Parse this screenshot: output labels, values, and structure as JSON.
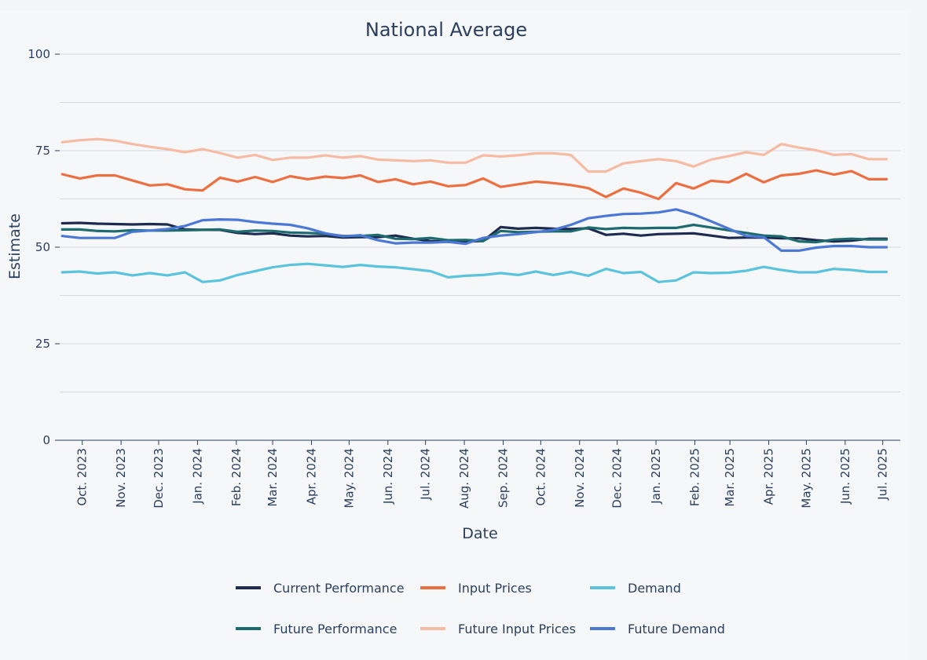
{
  "chart_data": {
    "type": "line",
    "title": "National Average",
    "xlabel": "Date",
    "ylabel": "Estimate",
    "ylim": [
      0,
      100
    ],
    "yticks": [
      0,
      25,
      50,
      75,
      100
    ],
    "x_start": "2023-09-13",
    "x_end": "2025-07-15",
    "x": [
      "2023-09-15",
      "2023-09-29",
      "2023-10-13",
      "2023-10-27",
      "2023-11-10",
      "2023-11-24",
      "2023-12-08",
      "2023-12-22",
      "2024-01-05",
      "2024-01-19",
      "2024-02-02",
      "2024-02-16",
      "2024-03-01",
      "2024-03-15",
      "2024-03-29",
      "2024-04-12",
      "2024-04-26",
      "2024-05-10",
      "2024-05-24",
      "2024-06-07",
      "2024-06-21",
      "2024-07-05",
      "2024-07-19",
      "2024-08-02",
      "2024-08-16",
      "2024-08-30",
      "2024-09-13",
      "2024-09-27",
      "2024-10-11",
      "2024-10-25",
      "2024-11-08",
      "2024-11-22",
      "2024-12-06",
      "2024-12-20",
      "2025-01-03",
      "2025-01-17",
      "2025-01-31",
      "2025-02-14",
      "2025-02-28",
      "2025-03-14",
      "2025-03-28",
      "2025-04-11",
      "2025-04-25",
      "2025-05-09",
      "2025-05-23",
      "2025-06-06",
      "2025-06-20",
      "2025-07-04"
    ],
    "xticks": [
      {
        "date": "2023-10-01",
        "label": "Oct. 2023"
      },
      {
        "date": "2023-11-01",
        "label": "Nov. 2023"
      },
      {
        "date": "2023-12-01",
        "label": "Dec. 2023"
      },
      {
        "date": "2024-01-01",
        "label": "Jan. 2024"
      },
      {
        "date": "2024-02-01",
        "label": "Feb. 2024"
      },
      {
        "date": "2024-03-01",
        "label": "Mar. 2024"
      },
      {
        "date": "2024-04-01",
        "label": "Apr. 2024"
      },
      {
        "date": "2024-05-01",
        "label": "May. 2024"
      },
      {
        "date": "2024-06-01",
        "label": "Jun. 2024"
      },
      {
        "date": "2024-07-01",
        "label": "Jul. 2024"
      },
      {
        "date": "2024-08-01",
        "label": "Aug. 2024"
      },
      {
        "date": "2024-09-01",
        "label": "Sep. 2024"
      },
      {
        "date": "2024-10-01",
        "label": "Oct. 2024"
      },
      {
        "date": "2024-11-01",
        "label": "Nov. 2024"
      },
      {
        "date": "2024-12-01",
        "label": "Dec. 2024"
      },
      {
        "date": "2025-01-01",
        "label": "Jan. 2025"
      },
      {
        "date": "2025-02-01",
        "label": "Feb. 2025"
      },
      {
        "date": "2025-03-01",
        "label": "Mar. 2025"
      },
      {
        "date": "2025-04-01",
        "label": "Apr. 2025"
      },
      {
        "date": "2025-05-01",
        "label": "May. 2025"
      },
      {
        "date": "2025-06-01",
        "label": "Jun. 2025"
      },
      {
        "date": "2025-07-01",
        "label": "Jul. 2025"
      }
    ],
    "series": [
      {
        "name": "Current Performance",
        "color": "#1d2b4f",
        "values": [
          56.2,
          56.3,
          56.1,
          56.0,
          55.9,
          56.0,
          55.9,
          54.6,
          54.5,
          54.5,
          53.7,
          53.4,
          53.6,
          53.0,
          52.8,
          52.9,
          52.5,
          52.6,
          52.6,
          53.0,
          52.2,
          51.6,
          51.4,
          51.5,
          51.6,
          55.2,
          54.8,
          55.0,
          54.8,
          54.7,
          54.9,
          53.2,
          53.5,
          53.0,
          53.4,
          53.5,
          53.6,
          53.0,
          52.4,
          52.5,
          52.5,
          52.3,
          52.3,
          51.8,
          51.5,
          51.7,
          52.2,
          52.2
        ]
      },
      {
        "name": "Input Prices",
        "color": "#ec6f42",
        "values": [
          68.9,
          67.8,
          68.6,
          68.6,
          67.3,
          66.0,
          66.3,
          65.0,
          64.7,
          68.0,
          67.0,
          68.2,
          66.9,
          68.4,
          67.6,
          68.3,
          67.9,
          68.6,
          66.9,
          67.6,
          66.3,
          67.0,
          65.8,
          66.1,
          67.8,
          65.6,
          66.3,
          67.0,
          66.6,
          66.1,
          65.3,
          63.0,
          65.2,
          64.1,
          62.5,
          66.6,
          65.2,
          67.2,
          66.8,
          69.0,
          66.8,
          68.6,
          69.0,
          69.9,
          68.8,
          69.7,
          67.6,
          67.6
        ]
      },
      {
        "name": "Demand",
        "color": "#5bc3dc",
        "values": [
          43.5,
          43.7,
          43.2,
          43.5,
          42.7,
          43.3,
          42.7,
          43.5,
          41.0,
          41.4,
          42.8,
          43.8,
          44.8,
          45.4,
          45.7,
          45.3,
          44.9,
          45.4,
          45.0,
          44.8,
          44.3,
          43.8,
          42.2,
          42.6,
          42.8,
          43.3,
          42.8,
          43.7,
          42.8,
          43.6,
          42.6,
          44.4,
          43.3,
          43.6,
          41.0,
          41.4,
          43.5,
          43.3,
          43.4,
          43.9,
          44.9,
          44.1,
          43.5,
          43.5,
          44.4,
          44.1,
          43.6,
          43.6
        ]
      },
      {
        "name": "Future Performance",
        "color": "#1e6b6f",
        "values": [
          54.6,
          54.6,
          54.2,
          54.1,
          54.4,
          54.3,
          54.3,
          54.4,
          54.5,
          54.6,
          54.0,
          54.3,
          54.2,
          53.8,
          53.7,
          53.5,
          52.9,
          52.9,
          53.2,
          52.2,
          52.1,
          52.4,
          51.8,
          51.9,
          51.6,
          54.2,
          53.9,
          54.0,
          54.1,
          54.1,
          55.1,
          54.7,
          55.0,
          54.9,
          55.0,
          55.0,
          55.8,
          55.1,
          54.4,
          53.7,
          53.0,
          52.8,
          51.5,
          51.3,
          52.0,
          52.2,
          52.0,
          52.0
        ]
      },
      {
        "name": "Future Input Prices",
        "color": "#f6bba4",
        "values": [
          77.2,
          77.7,
          78.0,
          77.6,
          76.7,
          76.0,
          75.4,
          74.6,
          75.4,
          74.4,
          73.2,
          73.9,
          72.6,
          73.2,
          73.2,
          73.8,
          73.2,
          73.6,
          72.7,
          72.5,
          72.3,
          72.5,
          71.9,
          71.9,
          73.8,
          73.5,
          73.8,
          74.3,
          74.3,
          73.9,
          69.6,
          69.6,
          71.7,
          72.3,
          72.8,
          72.3,
          70.9,
          72.7,
          73.6,
          74.6,
          73.9,
          76.7,
          75.8,
          75.1,
          73.9,
          74.1,
          72.8,
          72.8
        ]
      },
      {
        "name": "Future Demand",
        "color": "#4b78d4",
        "values": [
          52.9,
          52.4,
          52.4,
          52.4,
          54.0,
          54.3,
          54.7,
          55.5,
          57.0,
          57.2,
          57.1,
          56.5,
          56.1,
          55.8,
          54.9,
          53.6,
          52.8,
          53.1,
          51.8,
          51.0,
          51.2,
          51.2,
          51.4,
          50.9,
          52.4,
          53.0,
          53.4,
          53.9,
          54.5,
          55.8,
          57.5,
          58.1,
          58.6,
          58.7,
          59.0,
          59.8,
          58.5,
          56.7,
          54.8,
          52.9,
          52.6,
          49.1,
          49.1,
          49.9,
          50.3,
          50.3,
          50.0,
          50.0
        ]
      }
    ],
    "legend_position": "bottom"
  }
}
